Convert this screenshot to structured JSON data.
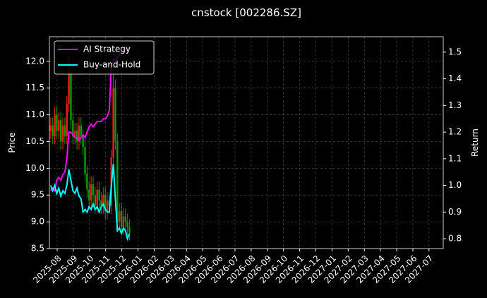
{
  "chart_data": {
    "type": "candlestick",
    "title": "cnstock [002286.SZ]",
    "ylabel": "Price",
    "y2label": "Return",
    "up_color": "#ff1a1a",
    "down_color": "#00a000",
    "grid": true,
    "legend": "upper left",
    "xlim": [
      -0.48,
      23.88
    ],
    "xticks": [
      {
        "value": 0,
        "label": "2025-08"
      },
      {
        "value": 1,
        "label": "2025-09"
      },
      {
        "value": 2,
        "label": "2025-10"
      },
      {
        "value": 3,
        "label": "2025-11"
      },
      {
        "value": 4,
        "label": "2025-12"
      },
      {
        "value": 5,
        "label": "2026-01"
      },
      {
        "value": 6,
        "label": "2026-02"
      },
      {
        "value": 7,
        "label": "2026-03"
      },
      {
        "value": 8,
        "label": "2026-04"
      },
      {
        "value": 9,
        "label": "2026-05"
      },
      {
        "value": 10,
        "label": "2026-06"
      },
      {
        "value": 11,
        "label": "2026-07"
      },
      {
        "value": 12,
        "label": "2026-08"
      },
      {
        "value": 13,
        "label": "2026-09"
      },
      {
        "value": 14,
        "label": "2026-10"
      },
      {
        "value": 15,
        "label": "2026-11"
      },
      {
        "value": 16,
        "label": "2026-12"
      },
      {
        "value": 17,
        "label": "2027-01"
      },
      {
        "value": 18,
        "label": "2027-02"
      },
      {
        "value": 19,
        "label": "2027-03"
      },
      {
        "value": 20,
        "label": "2027-04"
      },
      {
        "value": 21,
        "label": "2027-05"
      },
      {
        "value": 22,
        "label": "2027-06"
      },
      {
        "value": 23,
        "label": "2027-07"
      }
    ],
    "ylim": [
      8.5,
      12.46
    ],
    "yticks": [
      8.5,
      {
        "value": 9,
        "label": "9.0"
      },
      9.5,
      {
        "value": 10,
        "label": "10.0"
      },
      10.5,
      {
        "value": 11,
        "label": "11.0"
      },
      11.5,
      {
        "value": 12,
        "label": "12.0"
      }
    ],
    "y2lim": [
      0.763,
      1.558
    ],
    "y2ticks": [
      0.8,
      0.9,
      {
        "value": 1,
        "label": "1.0"
      },
      1.1,
      1.2,
      1.3,
      1.4,
      1.5
    ],
    "x": [
      -0.4,
      -0.275,
      -0.15,
      -0.025,
      0.1,
      0.225,
      0.35,
      0.475,
      0.6,
      0.725,
      0.85,
      0.975,
      1.1,
      1.225,
      1.35,
      1.475,
      1.6,
      1.725,
      1.85,
      1.975,
      2.1,
      2.225,
      2.35,
      2.475,
      2.6,
      2.725,
      2.85,
      2.975,
      3.1,
      3.225,
      3.35,
      3.475,
      3.6,
      3.725,
      3.85,
      3.975,
      4.1,
      4.225,
      4.35,
      4.475
    ],
    "open": [
      10.7,
      10.8,
      10.6,
      11.0,
      10.7,
      10.9,
      10.5,
      10.8,
      10.6,
      11.2,
      11.8,
      10.9,
      10.6,
      10.7,
      10.5,
      10.8,
      10.6,
      10.4,
      9.9,
      9.6,
      9.4,
      9.7,
      9.5,
      9.3,
      9.6,
      9.4,
      9.3,
      9.5,
      9.2,
      9.4,
      9.3,
      10.2,
      11.5,
      10.5,
      9.0,
      9.2,
      8.9,
      9.1,
      9.0,
      8.9
    ],
    "high": [
      10.95,
      10.95,
      11.15,
      11.15,
      11.05,
      11.05,
      10.95,
      10.95,
      11.35,
      12.1,
      11.95,
      11.05,
      10.85,
      10.85,
      10.95,
      10.95,
      10.75,
      10.55,
      10.05,
      9.75,
      9.85,
      9.85,
      9.65,
      9.75,
      9.75,
      9.55,
      9.65,
      9.65,
      9.55,
      9.55,
      10.35,
      11.9,
      11.65,
      10.65,
      9.35,
      9.35,
      9.25,
      9.25,
      9.15,
      9.05
    ],
    "low": [
      10.55,
      10.45,
      10.45,
      10.55,
      10.55,
      10.35,
      10.35,
      10.45,
      10.45,
      11.05,
      10.75,
      10.45,
      10.45,
      10.35,
      10.35,
      10.45,
      10.25,
      9.75,
      9.45,
      9.25,
      9.25,
      9.35,
      9.15,
      9.15,
      9.25,
      9.15,
      9.15,
      9.05,
      9.05,
      9.15,
      9.15,
      10.05,
      10.35,
      8.85,
      8.85,
      8.75,
      8.75,
      8.85,
      8.75,
      8.65
    ],
    "close": [
      10.8,
      10.6,
      11.0,
      10.7,
      10.9,
      10.5,
      10.8,
      10.6,
      11.2,
      11.8,
      10.9,
      10.6,
      10.7,
      10.5,
      10.8,
      10.6,
      10.4,
      9.9,
      9.6,
      9.4,
      9.7,
      9.5,
      9.3,
      9.6,
      9.4,
      9.3,
      9.5,
      9.2,
      9.4,
      9.3,
      10.2,
      11.5,
      10.5,
      9.0,
      9.2,
      8.9,
      9.1,
      9.0,
      8.9,
      8.8
    ],
    "series": [
      {
        "name": "AI Strategy",
        "color": "#ff00ff",
        "axis": "y2",
        "values": [
          0.98,
          0.99,
          0.98,
          1.02,
          1.03,
          1.02,
          1.04,
          1.05,
          1.1,
          1.2,
          1.2,
          1.19,
          1.18,
          1.18,
          1.17,
          1.18,
          1.19,
          1.18,
          1.2,
          1.22,
          1.23,
          1.22,
          1.23,
          1.24,
          1.24,
          1.24,
          1.25,
          1.25,
          1.26,
          1.28,
          1.45,
          1.47,
          1.47,
          1.48,
          1.49,
          1.5,
          1.5,
          1.51,
          1.52,
          1.52
        ]
      },
      {
        "name": "Buy-and-Hold",
        "color": "#00ffff",
        "axis": "y2",
        "values": [
          1.0,
          0.98,
          1.0,
          0.97,
          0.99,
          0.96,
          0.98,
          0.97,
          1.0,
          1.06,
          1.02,
          0.98,
          0.97,
          0.99,
          0.96,
          0.95,
          0.9,
          0.91,
          0.9,
          0.92,
          0.91,
          0.93,
          0.91,
          0.92,
          0.9,
          0.92,
          0.93,
          0.91,
          0.9,
          0.9,
          1.0,
          1.08,
          0.95,
          0.83,
          0.84,
          0.82,
          0.84,
          0.83,
          0.8,
          0.82
        ]
      }
    ]
  }
}
